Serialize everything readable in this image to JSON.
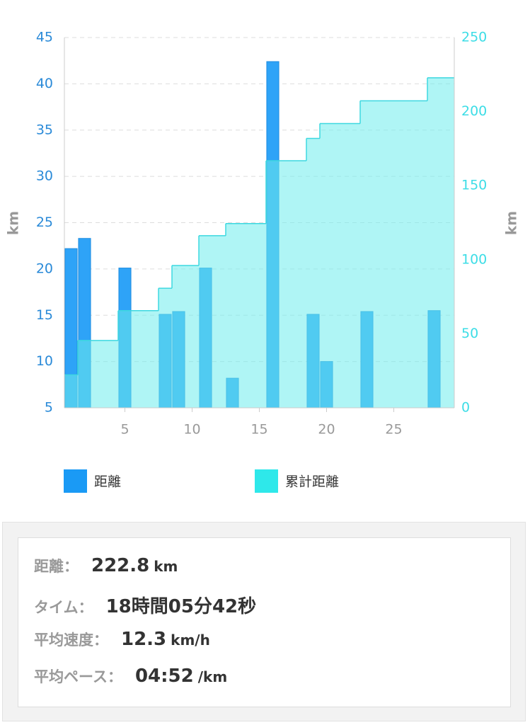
{
  "chart_data": {
    "type": "combo",
    "x": [
      1,
      2,
      3,
      4,
      5,
      6,
      7,
      8,
      9,
      10,
      11,
      12,
      13,
      14,
      15,
      16,
      17,
      18,
      19,
      20,
      21,
      22,
      23,
      24,
      25,
      26,
      27,
      28,
      29
    ],
    "series": [
      {
        "name": "距離",
        "type": "bar",
        "color": "#2ea3f7",
        "legend_color": "#1a9af5",
        "values": [
          22.2,
          23.3,
          null,
          null,
          20.1,
          null,
          null,
          15.1,
          15.4,
          null,
          20.1,
          null,
          8.2,
          null,
          null,
          42.4,
          null,
          null,
          15.1,
          10.0,
          null,
          null,
          15.4,
          null,
          null,
          null,
          null,
          15.5,
          null
        ]
      },
      {
        "name": "累計距離",
        "type": "step-area",
        "axis": "y2",
        "color": "#3dd8e0",
        "legend_color": "#2ee8ea",
        "values": [
          22.2,
          45.5,
          45.5,
          45.5,
          65.6,
          65.6,
          65.6,
          80.7,
          96.1,
          96.1,
          116.2,
          116.2,
          124.4,
          124.4,
          124.4,
          166.8,
          166.8,
          166.8,
          181.9,
          191.9,
          191.9,
          191.9,
          207.3,
          207.3,
          207.3,
          207.3,
          207.3,
          222.8,
          222.8
        ]
      }
    ],
    "xlim": [
      0.5,
      29.5
    ],
    "xticks": [
      5,
      10,
      15,
      20,
      25
    ],
    "ylim": [
      5,
      45
    ],
    "yticks": [
      5,
      10,
      15,
      20,
      25,
      30,
      35,
      40,
      45
    ],
    "ylabel": "km",
    "y2lim": [
      0,
      250
    ],
    "y2ticks": [
      0,
      50,
      100,
      150,
      200,
      250
    ],
    "y2label": "km",
    "grid": true
  },
  "stats": [
    {
      "label": "距離：",
      "value": "222.8",
      "unit": "km"
    },
    {
      "label": "タイム：",
      "value": "18時間05分42秒"
    },
    {
      "label": "平均速度：",
      "value": "12.3",
      "unit": "km/h"
    },
    {
      "label": "平均ペース：",
      "value": "04:52",
      "unit": "/km"
    }
  ]
}
